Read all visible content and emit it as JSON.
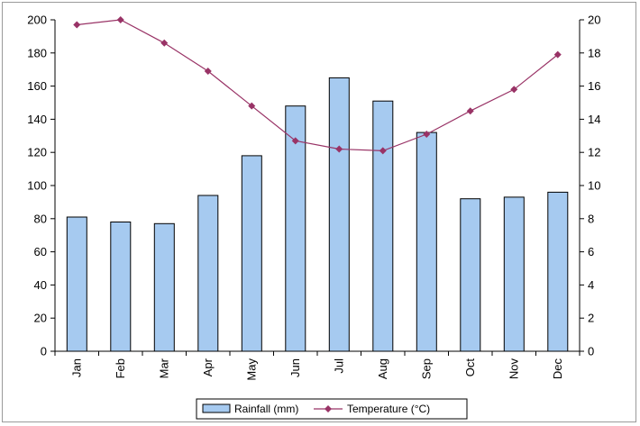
{
  "chart_data": {
    "type": "bar",
    "categories": [
      "Jan",
      "Feb",
      "Mar",
      "Apr",
      "May",
      "Jun",
      "Jul",
      "Aug",
      "Sep",
      "Oct",
      "Nov",
      "Dec"
    ],
    "series": [
      {
        "name": "Rainfall (mm)",
        "type": "bar",
        "axis": "left",
        "values": [
          81,
          78,
          77,
          94,
          118,
          148,
          165,
          151,
          132,
          92,
          93,
          96
        ]
      },
      {
        "name": "Temperature (°C)",
        "type": "line",
        "axis": "right",
        "values": [
          19.7,
          20.0,
          18.6,
          16.9,
          14.8,
          12.7,
          12.2,
          12.1,
          13.1,
          14.5,
          15.8,
          17.9
        ]
      }
    ],
    "yleft": {
      "min": 0,
      "max": 200,
      "step": 20,
      "ticks": [
        "0",
        "20",
        "40",
        "60",
        "80",
        "100",
        "120",
        "140",
        "160",
        "180",
        "200"
      ]
    },
    "yright": {
      "min": 0,
      "max": 20,
      "step": 2,
      "ticks": [
        "0",
        "2",
        "4",
        "6",
        "8",
        "10",
        "12",
        "14",
        "16",
        "18",
        "20"
      ]
    },
    "grid": false,
    "legend_position": "bottom",
    "colors": {
      "bar_fill": "#a6caf0",
      "bar_stroke": "#000000",
      "line": "#993366",
      "marker": "#993366",
      "axis": "#000000"
    }
  }
}
